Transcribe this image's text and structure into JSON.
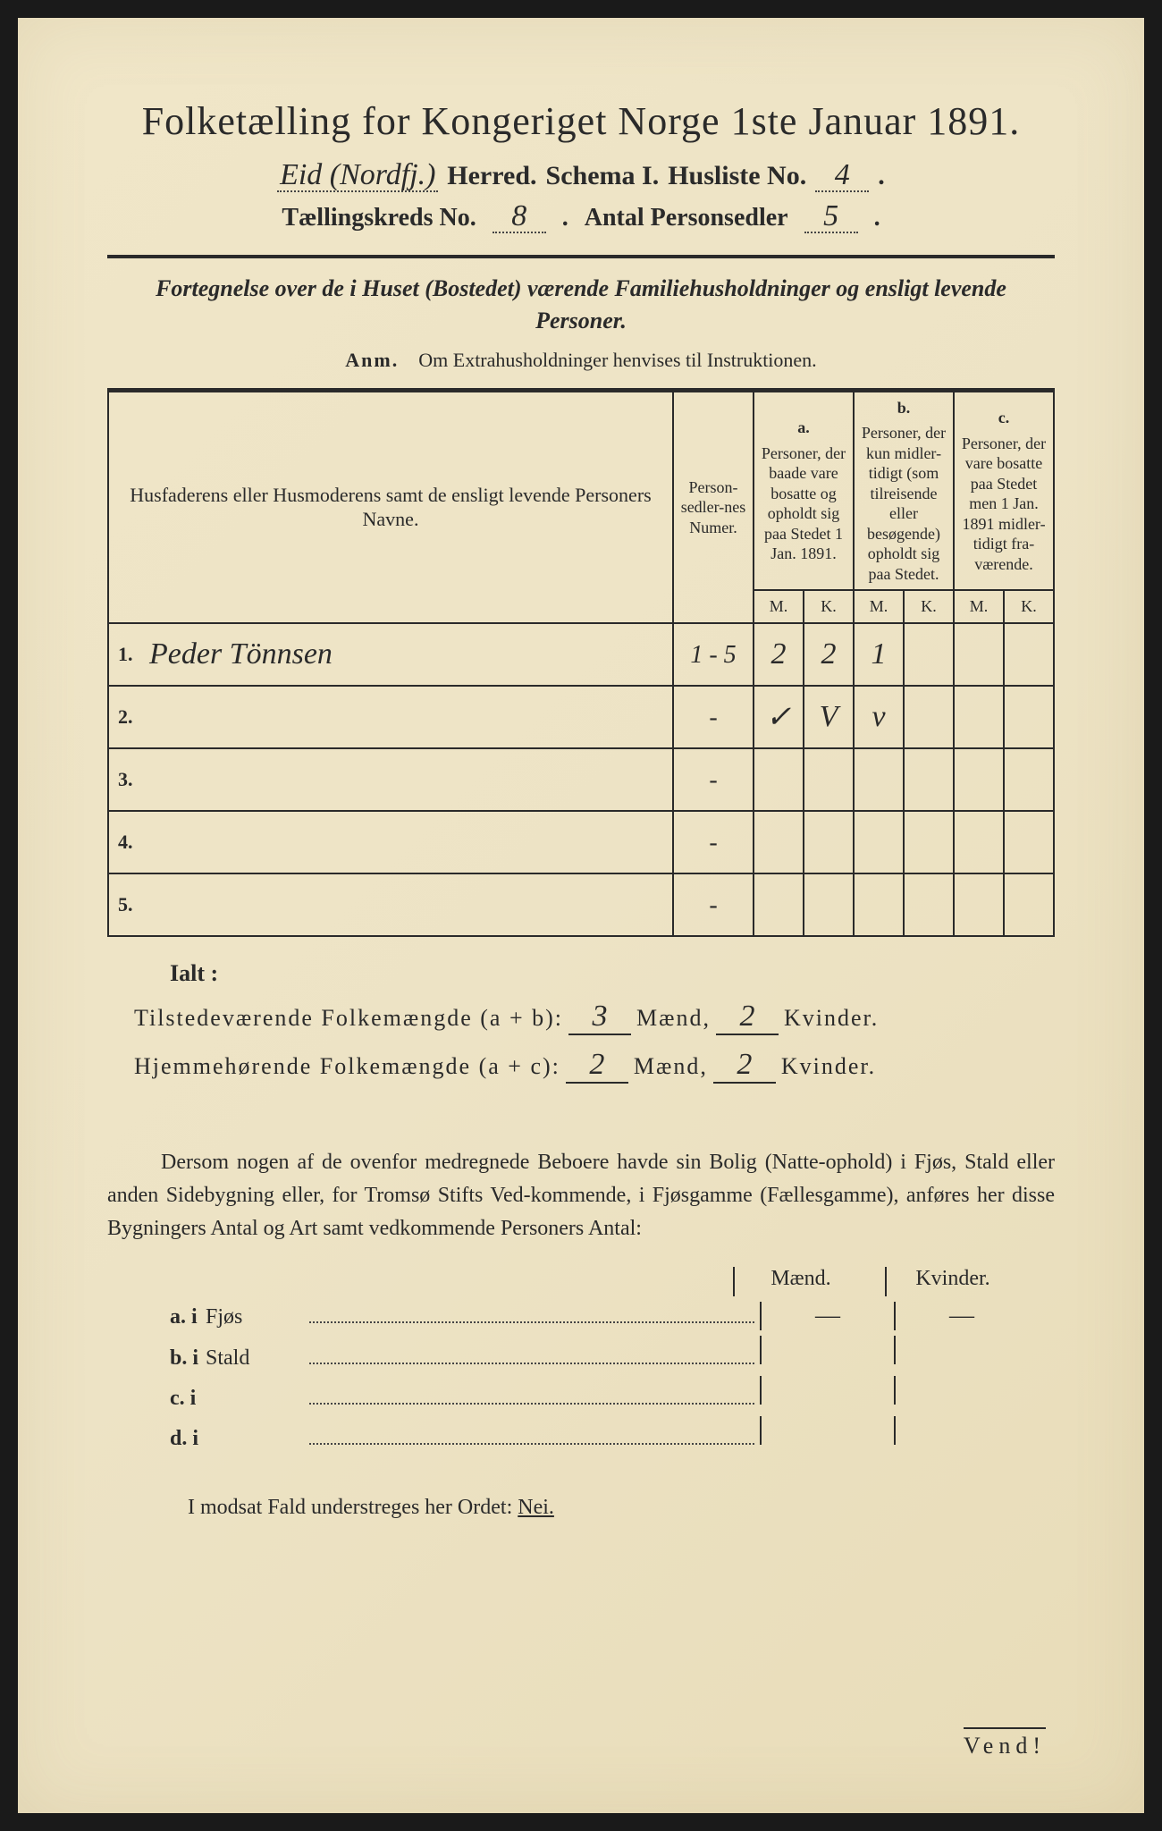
{
  "colors": {
    "page_bg": "#ede3c5",
    "outer_bg": "#1a1a1a",
    "ink": "#2a2a2a",
    "dotted": "#444444"
  },
  "typography": {
    "title_fontsize_pt": 33,
    "header_fontsize_pt": 22,
    "body_fontsize_pt": 18,
    "table_header_fontsize_pt": 14,
    "cursive_family": "Brush Script MT"
  },
  "title": "Folketælling for Kongeriget Norge 1ste Januar 1891.",
  "header": {
    "herred_value": "Eid (Nordfj.)",
    "herred_label": "Herred.",
    "schema_label": "Schema I.",
    "husliste_label": "Husliste No.",
    "husliste_no": "4",
    "kreds_label": "Tællingskreds No.",
    "kreds_no": "8",
    "personsedler_label": "Antal Personsedler",
    "personsedler_no": "5"
  },
  "subtitle": "Fortegnelse over de i Huset (Bostedet) værende Familiehusholdninger og ensligt levende Personer.",
  "anm_label": "Anm.",
  "anm_text": "Om Extrahusholdninger henvises til Instruktionen.",
  "table": {
    "col_names": "Husfaderens eller Husmoderens samt de ensligt levende Personers Navne.",
    "col_numer": "Person-sedler-nes Numer.",
    "col_a_label": "a.",
    "col_a": "Personer, der baade vare bosatte og opholdt sig paa Stedet 1 Jan. 1891.",
    "col_b_label": "b.",
    "col_b": "Personer, der kun midler-tidigt (som tilreisende eller besøgende) opholdt sig paa Stedet.",
    "col_c_label": "c.",
    "col_c": "Personer, der vare bosatte paa Stedet men 1 Jan. 1891 midler-tidigt fra-værende.",
    "M": "M.",
    "K": "K.",
    "rows": [
      {
        "n": "1.",
        "name": "Peder Tönnsen",
        "numer": "1 - 5",
        "aM": "2",
        "aK": "2",
        "bM": "1",
        "bK": "",
        "cM": "",
        "cK": ""
      },
      {
        "n": "2.",
        "name": "",
        "numer": "-",
        "aM": "✓",
        "aK": "V",
        "bM": "v",
        "bK": "",
        "cM": "",
        "cK": ""
      },
      {
        "n": "3.",
        "name": "",
        "numer": "-",
        "aM": "",
        "aK": "",
        "bM": "",
        "bK": "",
        "cM": "",
        "cK": ""
      },
      {
        "n": "4.",
        "name": "",
        "numer": "-",
        "aM": "",
        "aK": "",
        "bM": "",
        "bK": "",
        "cM": "",
        "cK": ""
      },
      {
        "n": "5.",
        "name": "",
        "numer": "-",
        "aM": "",
        "aK": "",
        "bM": "",
        "bK": "",
        "cM": "",
        "cK": ""
      }
    ]
  },
  "ialt_label": "Ialt :",
  "totals": {
    "line1_label": "Tilstedeværende Folkemængde (a + b):",
    "line1_m": "3",
    "line1_k": "2",
    "line2_label": "Hjemmehørende Folkemængde (a + c):",
    "line2_m": "2",
    "line2_k": "2",
    "maend": "Mænd,",
    "kvinder": "Kvinder."
  },
  "para": "Dersom nogen af de ovenfor medregnede Beboere havde sin Bolig (Natte-ophold) i Fjøs, Stald eller anden Sidebygning eller, for Tromsø Stifts Ved-kommende, i Fjøsgamme (Fællesgamme), anføres her disse Bygningers Antal og Art samt vedkommende Personers Antal:",
  "side": {
    "maend": "Mænd.",
    "kvinder": "Kvinder.",
    "rows": [
      {
        "lbl": "a. i",
        "word": "Fjøs",
        "m": "—",
        "k": "—"
      },
      {
        "lbl": "b. i",
        "word": "Stald",
        "m": "",
        "k": ""
      },
      {
        "lbl": "c. i",
        "word": "",
        "m": "",
        "k": ""
      },
      {
        "lbl": "d. i",
        "word": "",
        "m": "",
        "k": ""
      }
    ]
  },
  "nei_line_prefix": "I modsat Fald understreges her Ordet:",
  "nei_word": "Nei.",
  "vend": "Vend!"
}
